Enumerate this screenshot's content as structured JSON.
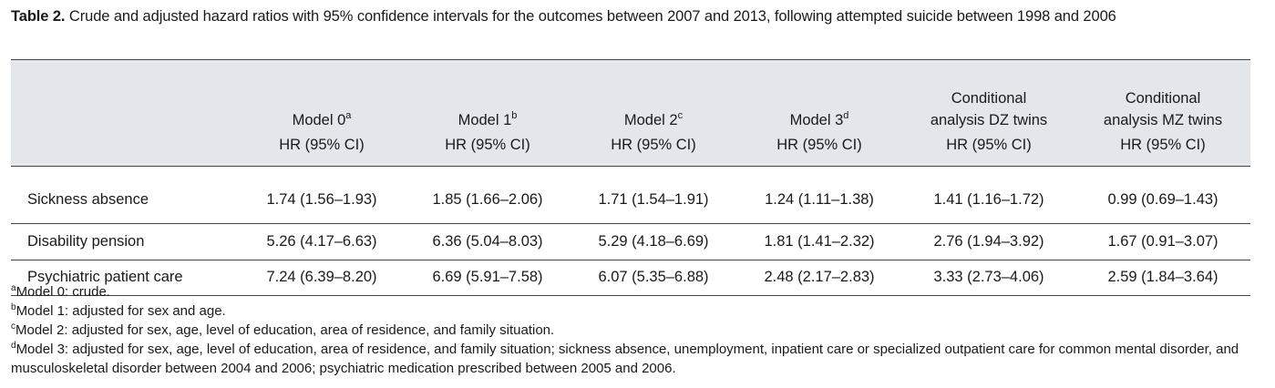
{
  "caption": {
    "label": "Table 2.",
    "text": " Crude and adjusted hazard ratios with 95% confidence intervals for the outcomes between 2007 and 2013, following attempted suicide between 1998 and 2006"
  },
  "table": {
    "columns": [
      {
        "title": "Model 0",
        "sup": "a",
        "sub": "HR (95% CI)"
      },
      {
        "title": "Model 1",
        "sup": "b",
        "sub": "HR (95% CI)"
      },
      {
        "title": "Model 2",
        "sup": "c",
        "sub": "HR (95% CI)"
      },
      {
        "title": "Model 3",
        "sup": "d",
        "sub": "HR (95% CI)"
      },
      {
        "title_line1": "Conditional",
        "title_line2": "analysis DZ twins",
        "sub": "HR (95% CI)"
      },
      {
        "title_line1": "Conditional",
        "title_line2": "analysis MZ twins",
        "sub": "HR (95% CI)"
      }
    ],
    "rows": [
      {
        "label": "Sickness absence",
        "cells": [
          "1.74 (1.56–1.93)",
          "1.85 (1.66–2.06)",
          "1.71 (1.54–1.91)",
          "1.24 (1.11–1.38)",
          "1.41 (1.16–1.72)",
          "0.99 (0.69–1.43)"
        ]
      },
      {
        "label": "Disability pension",
        "cells": [
          "5.26 (4.17–6.63)",
          "6.36 (5.04–8.03)",
          "5.29 (4.18–6.69)",
          "1.81 (1.41–2.32)",
          "2.76 (1.94–3.92)",
          "1.67 (0.91–3.07)"
        ]
      },
      {
        "label": "Psychiatric patient care",
        "cells": [
          "7.24 (6.39–8.20)",
          "6.69 (5.91–7.58)",
          "6.07 (5.35–6.88)",
          "2.48 (2.17–2.83)",
          "3.33 (2.73–4.06)",
          "2.59 (1.84–3.64)"
        ]
      }
    ]
  },
  "notes": [
    {
      "sup": "a",
      "text": "Model 0: crude."
    },
    {
      "sup": "b",
      "text": "Model 1: adjusted for sex and age."
    },
    {
      "sup": "c",
      "text": "Model 2: adjusted for sex, age, level of education, area of residence, and family situation."
    },
    {
      "sup": "d",
      "text": "Model 3: adjusted for sex, age, level of education, area of residence, and family situation; sickness absence, unemployment, inpatient care or specialized outpatient care for common mental disorder, and musculoskeletal disorder between 2004 and 2006; psychiatric medication prescribed between 2005 and 2006."
    }
  ]
}
